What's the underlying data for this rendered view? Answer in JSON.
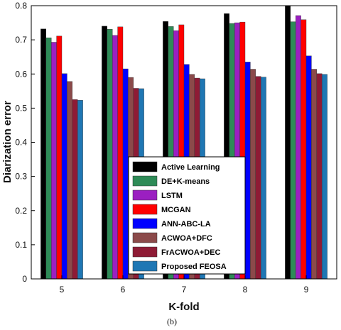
{
  "chart_data": {
    "type": "bar",
    "xlabel": "K-fold",
    "ylabel": "Diarization error",
    "caption": "(b)",
    "categories": [
      "5",
      "6",
      "7",
      "8",
      "9"
    ],
    "ylim": [
      0,
      0.8
    ],
    "yticks": [
      "0",
      "0.1",
      "0.2",
      "0.3",
      "0.4",
      "0.5",
      "0.6",
      "0.7",
      "0.8"
    ],
    "legend_position": "bottom-center",
    "grid": false,
    "series": [
      {
        "name": "Active Learning",
        "color": "#000000",
        "values": [
          0.732,
          0.74,
          0.754,
          0.777,
          0.8
        ]
      },
      {
        "name": "DE+K-means",
        "color": "#2e8b57",
        "values": [
          0.706,
          0.731,
          0.739,
          0.748,
          0.753
        ]
      },
      {
        "name": "LSTM",
        "color": "#9b1fc1",
        "values": [
          0.693,
          0.713,
          0.727,
          0.75,
          0.771
        ]
      },
      {
        "name": "MCGAN",
        "color": "#ff0000",
        "values": [
          0.711,
          0.738,
          0.744,
          0.752,
          0.759
        ]
      },
      {
        "name": "ANN-ABC-LA",
        "color": "#0000ff",
        "values": [
          0.601,
          0.615,
          0.628,
          0.635,
          0.653
        ]
      },
      {
        "name": "ACWOA+DFC",
        "color": "#8b4a4a",
        "values": [
          0.578,
          0.59,
          0.599,
          0.614,
          0.614
        ]
      },
      {
        "name": "FrACWOA+DEC",
        "color": "#8e1b35",
        "values": [
          0.525,
          0.558,
          0.588,
          0.593,
          0.601
        ]
      },
      {
        "name": "Proposed FEOSA",
        "color": "#1f77b4",
        "values": [
          0.523,
          0.557,
          0.586,
          0.591,
          0.599
        ]
      }
    ]
  }
}
